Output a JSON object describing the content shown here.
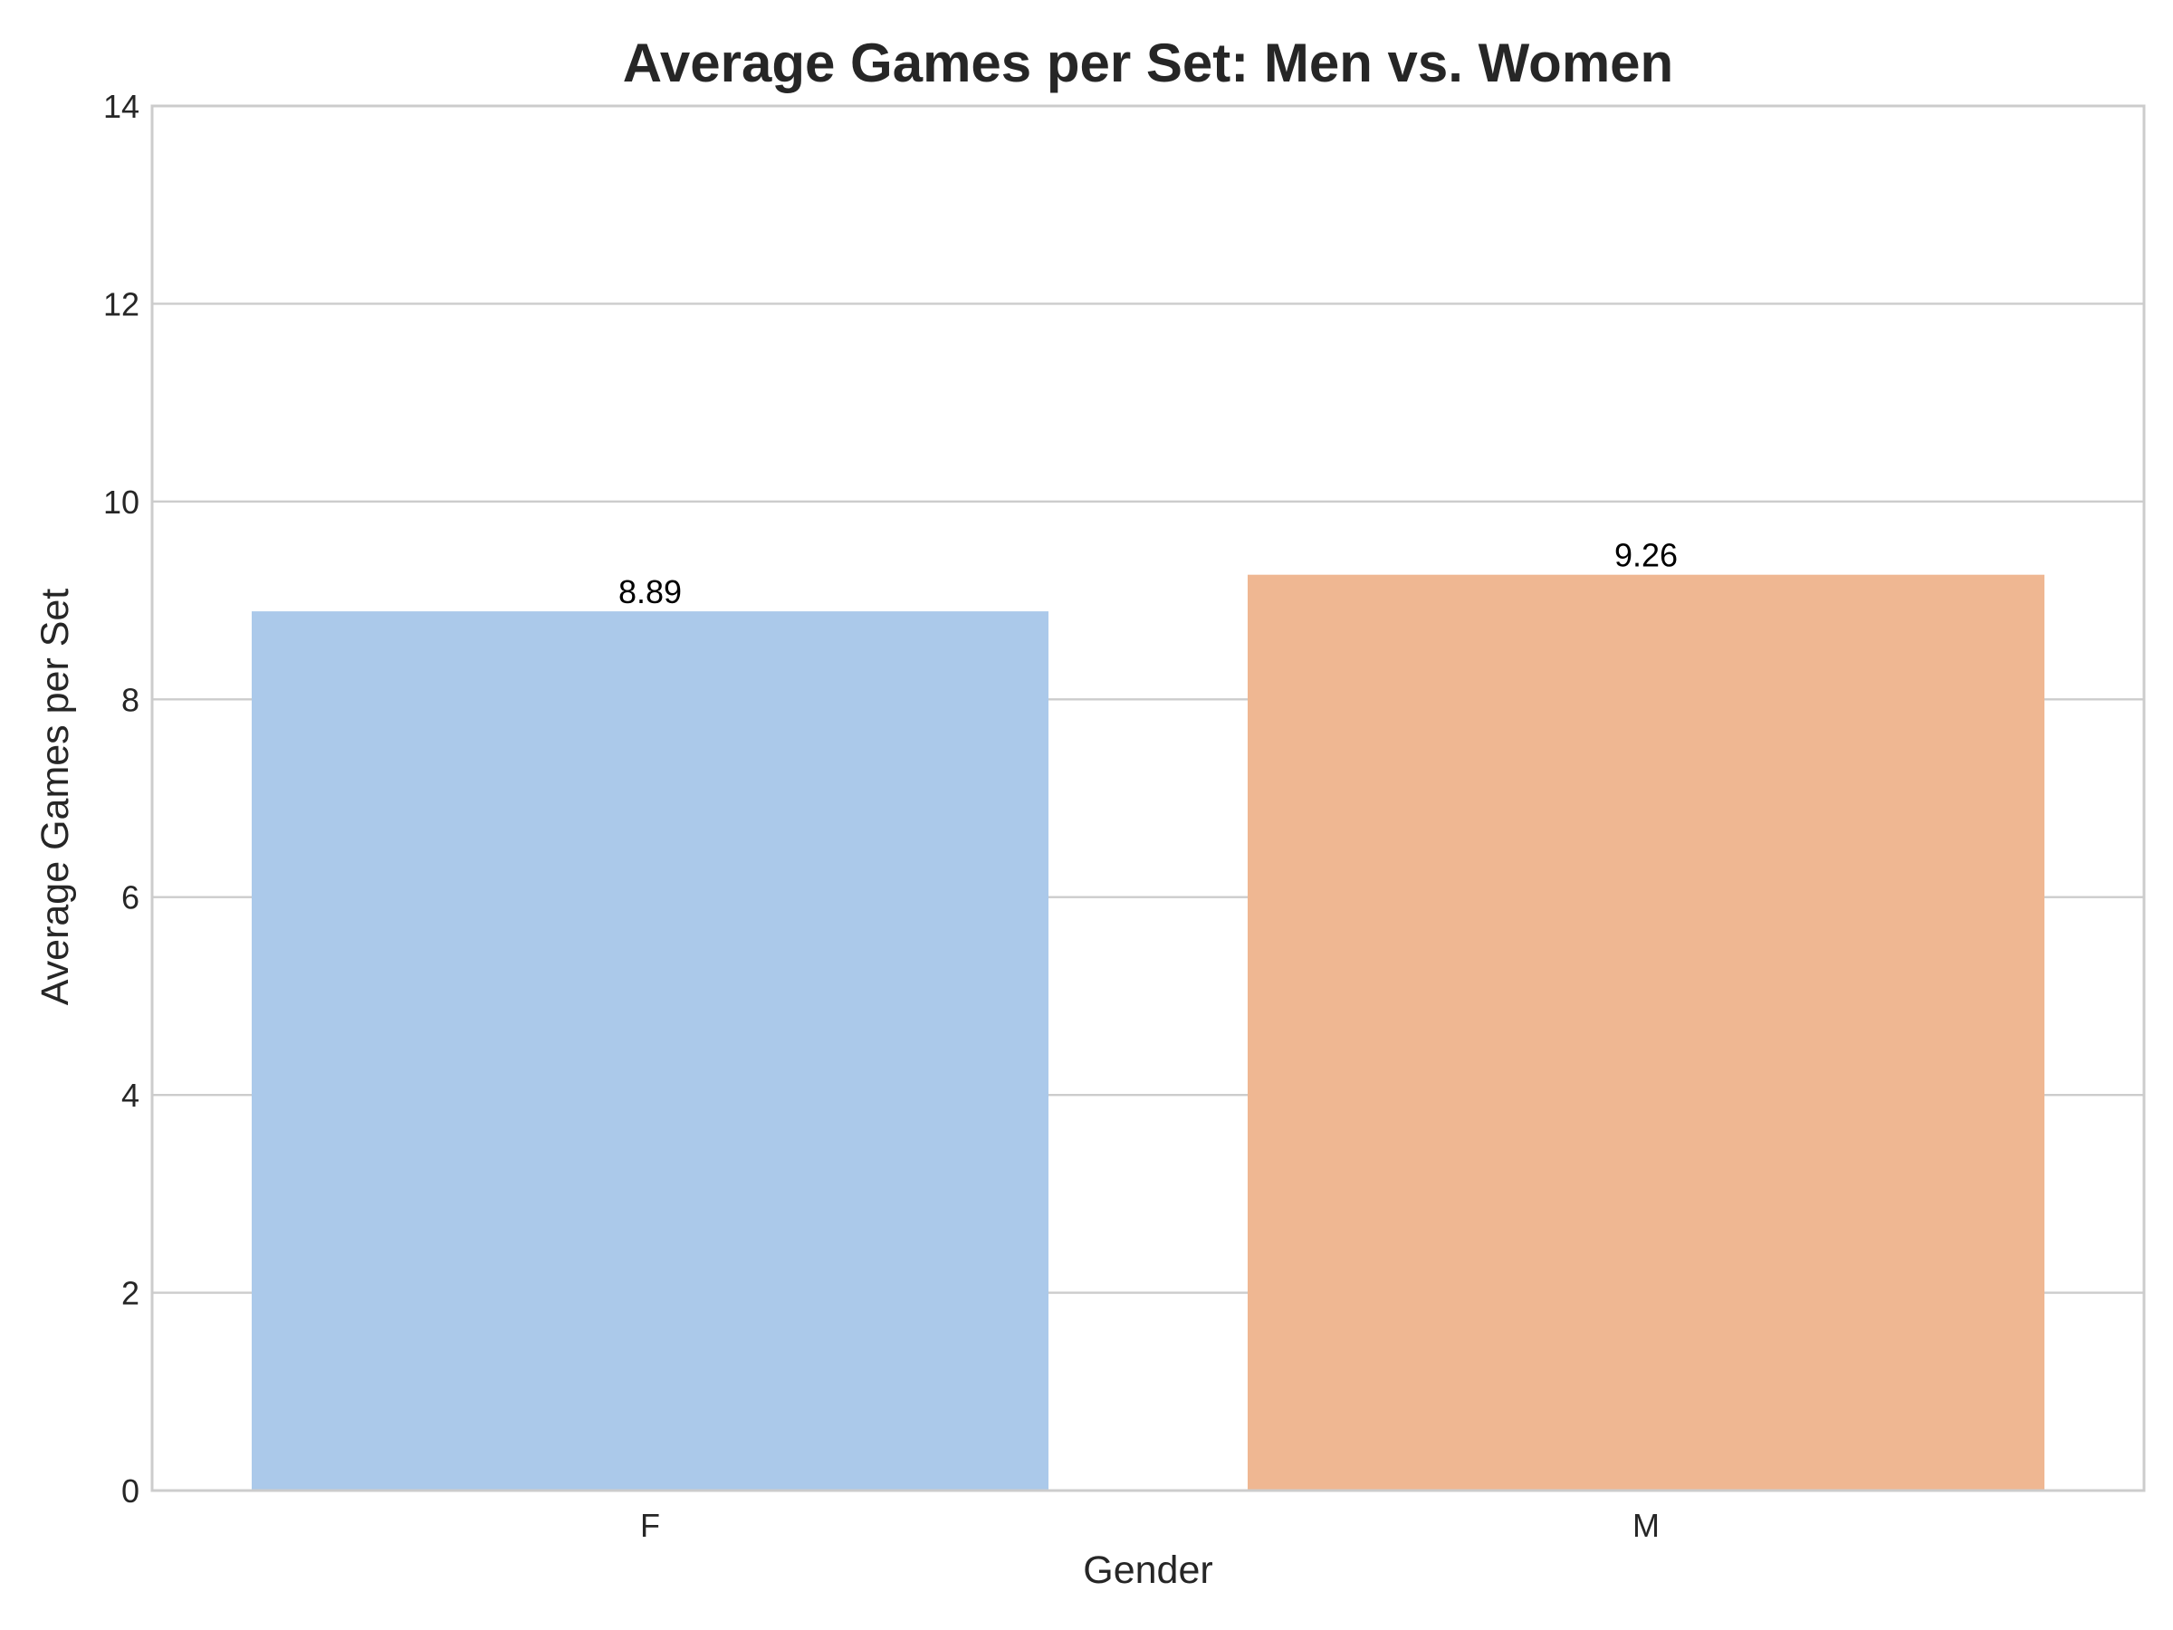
{
  "chart_data": {
    "type": "bar",
    "title": "Average Games per Set: Men vs. Women",
    "xlabel": "Gender",
    "ylabel": "Average Games per Set",
    "categories": [
      "F",
      "M"
    ],
    "values": [
      8.89,
      9.26
    ],
    "value_labels": [
      "8.89",
      "9.26"
    ],
    "bar_colors": [
      "#abc9ea",
      "#efb792"
    ],
    "ylim": [
      0,
      14
    ],
    "yticks": [
      0,
      2,
      4,
      6,
      8,
      10,
      12,
      14
    ],
    "ytick_labels": [
      "0",
      "2",
      "4",
      "6",
      "8",
      "10",
      "12",
      "14"
    ],
    "grid": "y",
    "legend": "none"
  }
}
